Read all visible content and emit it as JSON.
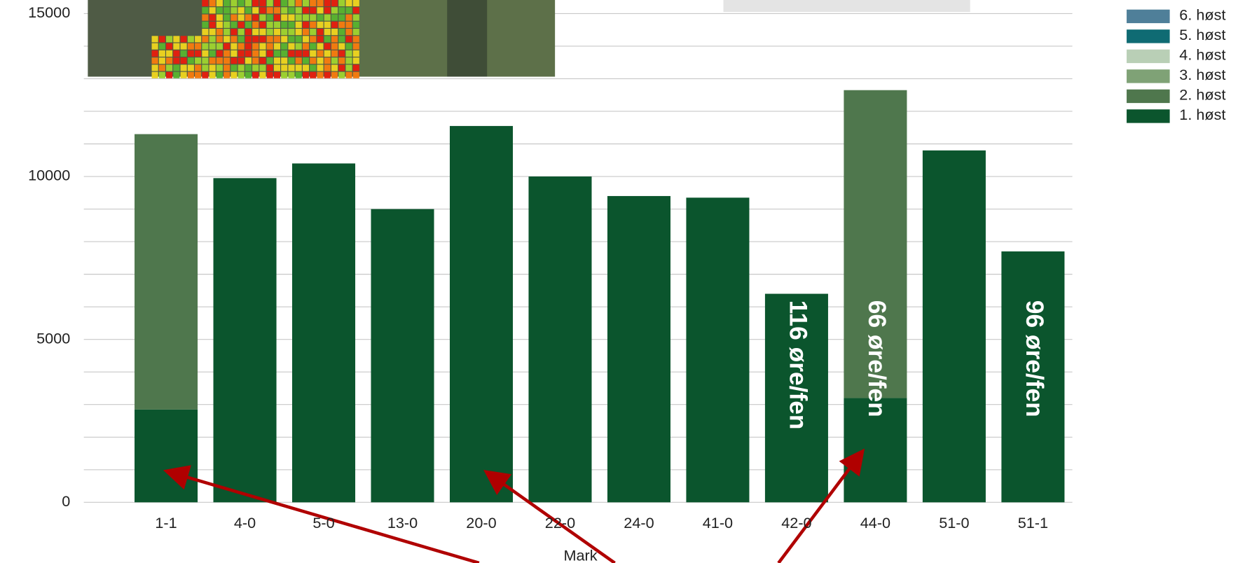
{
  "chart_data": {
    "type": "bar",
    "stacked": true,
    "x_label": "Mark",
    "categories": [
      "1-1",
      "4-0",
      "5-0",
      "13-0",
      "20-0",
      "22-0",
      "24-0",
      "41-0",
      "42-0",
      "44-0",
      "51-0",
      "51-1"
    ],
    "series": [
      {
        "name": "1. høst",
        "color": "#0b552d",
        "values": [
          2850,
          9950,
          10400,
          9000,
          11550,
          10000,
          9400,
          9350,
          6400,
          3200,
          10800,
          7700
        ]
      },
      {
        "name": "2. høst",
        "color": "#4f774d",
        "values": [
          8450,
          0,
          0,
          0,
          0,
          0,
          0,
          0,
          0,
          9450,
          0,
          0
        ]
      },
      {
        "name": "3. høst",
        "color": "#7fa276",
        "values": [
          0,
          0,
          0,
          0,
          0,
          0,
          0,
          0,
          0,
          0,
          0,
          0
        ]
      },
      {
        "name": "4. høst",
        "color": "#b9cfb6",
        "values": [
          0,
          0,
          0,
          0,
          0,
          0,
          0,
          0,
          0,
          0,
          0,
          0
        ]
      },
      {
        "name": "5. høst",
        "color": "#0f6b73",
        "values": [
          0,
          0,
          0,
          0,
          0,
          0,
          0,
          0,
          0,
          0,
          0,
          0
        ]
      },
      {
        "name": "6. høst",
        "color": "#4f7f99",
        "values": [
          0,
          0,
          0,
          0,
          0,
          0,
          0,
          0,
          0,
          0,
          0,
          0
        ]
      }
    ],
    "ylim": [
      0,
      15400
    ],
    "yticks": [
      0,
      5000,
      10000,
      15000
    ],
    "minor_yticks": [
      1000,
      2000,
      3000,
      4000,
      6000,
      7000,
      8000,
      9000,
      11000,
      12000,
      13000,
      14000
    ],
    "grid": true,
    "legend": "upper right",
    "annotations": [
      {
        "text": "116 øre/fen",
        "category": "42-0"
      },
      {
        "text": "66 øre/fen",
        "category": "44-0"
      },
      {
        "text": "96 øre/fen",
        "category": "51-1"
      }
    ]
  }
}
